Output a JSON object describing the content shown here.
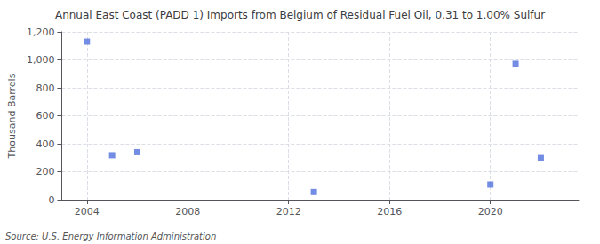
{
  "chart_data": {
    "type": "scatter",
    "title": "Annual East Coast (PADD 1) Imports from Belgium of Residual Fuel Oil, 0.31 to 1.00% Sulfur",
    "ylabel": "Thousand Barrels",
    "annotation": "Source: U.S. Energy Information Administration",
    "x": [
      2004,
      2005,
      2006,
      2013,
      2020,
      2021,
      2022
    ],
    "values": [
      1130,
      318,
      340,
      55,
      108,
      972,
      298
    ],
    "marker": "square",
    "xlim": [
      2003,
      2023.5
    ],
    "xticks": [
      2004,
      2008,
      2012,
      2016,
      2020
    ],
    "ylim": [
      0,
      1200
    ],
    "yticks": [
      0,
      200,
      400,
      600,
      800,
      {
        "value": 1000,
        "label": "1,000"
      },
      {
        "value": 1200,
        "label": "1,200"
      }
    ],
    "grid": true
  }
}
